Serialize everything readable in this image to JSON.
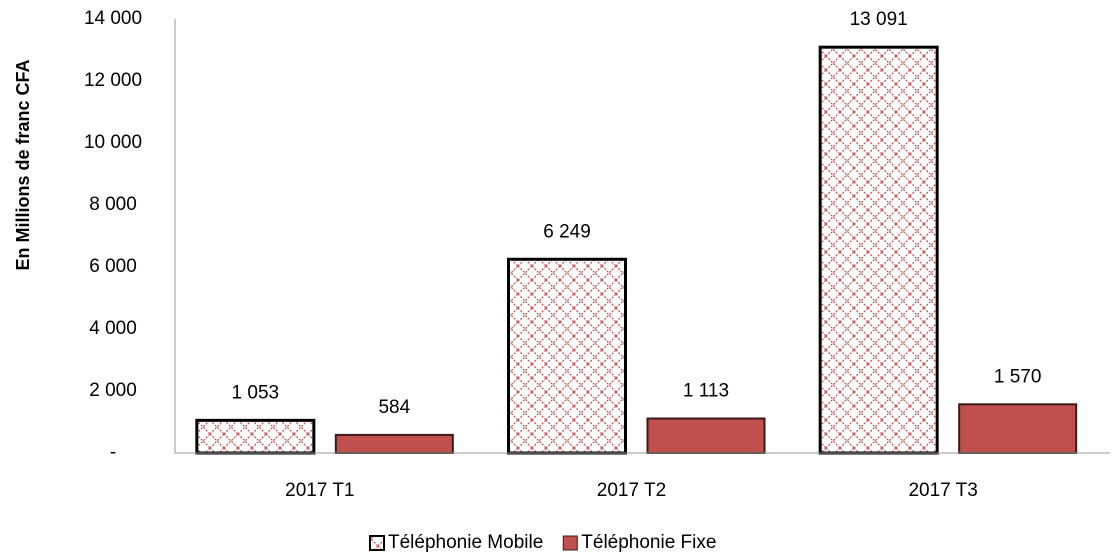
{
  "chart_data": {
    "type": "bar",
    "y_label": "En Millions de franc CFA",
    "categories": [
      "2017 T1",
      "2017 T2",
      "2017 T3"
    ],
    "series": [
      {
        "name": "Téléphonie Mobile",
        "color": "#c0504d",
        "pattern": "crosshatch",
        "values": [
          1053,
          6249,
          13091
        ],
        "value_labels": [
          "1 053",
          "6 249",
          "13 091"
        ]
      },
      {
        "name": "Téléphonie Fixe",
        "color": "#c0504d",
        "values": [
          584,
          1113,
          1570
        ],
        "value_labels": [
          "584",
          "1 113",
          "1 570"
        ]
      }
    ],
    "ylim": [
      0,
      14000
    ],
    "yticks": [
      {
        "value": 0,
        "label": "-"
      },
      {
        "value": 2000,
        "label": "2 000"
      },
      {
        "value": 4000,
        "label": "4 000"
      },
      {
        "value": 6000,
        "label": "6 000"
      },
      {
        "value": 8000,
        "label": "8 000"
      },
      {
        "value": 10000,
        "label": "10 000"
      },
      {
        "value": 12000,
        "label": "12 000"
      },
      {
        "value": 14000,
        "label": "14 000"
      }
    ],
    "grid": false,
    "legend": "bottom"
  }
}
